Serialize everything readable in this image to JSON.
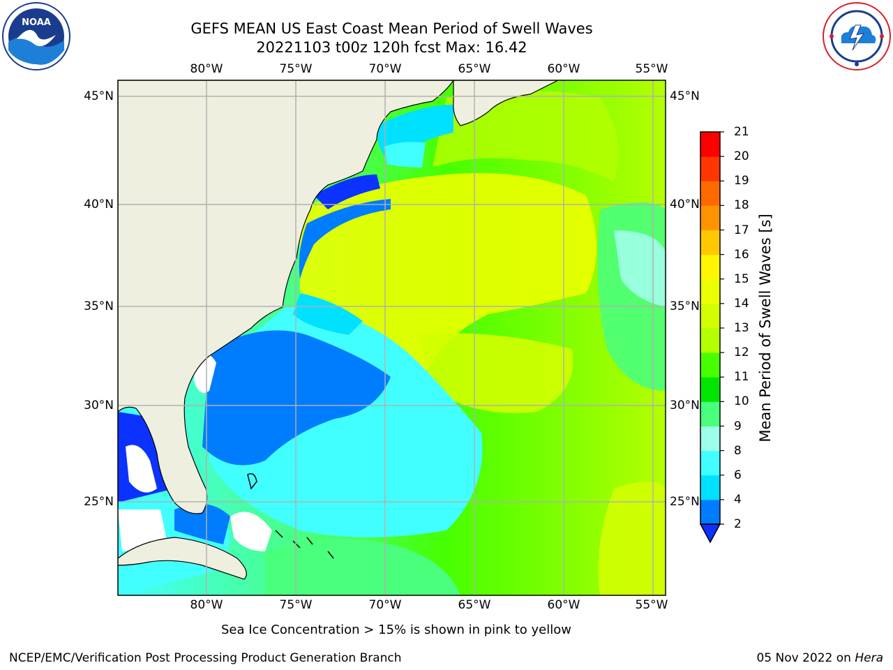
{
  "header": {
    "title_line1": "GEFS MEAN US East Coast Mean Period of Swell Waves",
    "title_line2": "20221103 t00z 120h fcst   Max: 16.42"
  },
  "logos": {
    "left": "noara-seal",
    "right": "nws-seal"
  },
  "map": {
    "lon_ticks": [
      "80°W",
      "75°W",
      "70°W",
      "65°W",
      "60°W",
      "55°W"
    ],
    "lat_ticks": [
      "45°N",
      "40°N",
      "35°N",
      "30°N",
      "25°N"
    ],
    "land_color": "#efefdf",
    "grid_color": "#b0b0b0"
  },
  "colorbar": {
    "label": "Mean Period of Swell Waves [s]",
    "ticks": [
      "2",
      "4",
      "6",
      "8",
      "9",
      "10",
      "11",
      "12",
      "13",
      "14",
      "15",
      "16",
      "17",
      "18",
      "19",
      "20",
      "21"
    ],
    "colors": [
      "#0b32ff",
      "#007cff",
      "#00e1ff",
      "#42ffff",
      "#9effe8",
      "#49ff7b",
      "#00e600",
      "#46ff00",
      "#b4ff00",
      "#d2ff00",
      "#ecff00",
      "#fff500",
      "#ffc800",
      "#ff9400",
      "#ff6a00",
      "#ff3600",
      "#ff0000"
    ]
  },
  "footer": {
    "note": "Sea Ice Concentration > 15% is shown in pink to yellow",
    "credit_left": "NCEP/EMC/Verification Post Processing Product Generation Branch",
    "credit_date": "05 Nov 2022 on ",
    "credit_host": "Hera"
  }
}
